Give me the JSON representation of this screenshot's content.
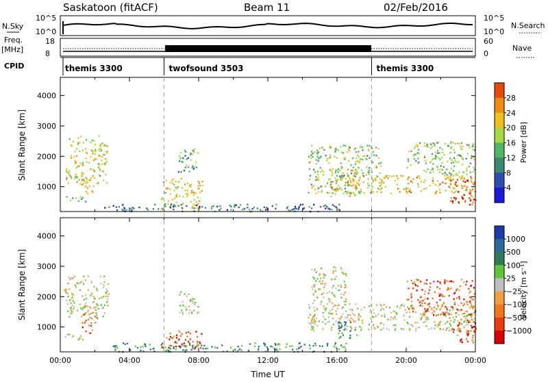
{
  "header": {
    "station": "Saskatoon (fitACF)",
    "beam": "Beam 11",
    "date": "02/Feb/2016"
  },
  "top_panels": {
    "nsky_label": "N.Sky",
    "nsky_ticks": [
      "10^5",
      "10^0"
    ],
    "nsearch_label": "N.Search",
    "nsearch_ticks": [
      "10^5",
      "10^0"
    ],
    "freq_label": "Freq.",
    "freq_unit": "[MHz]",
    "freq_ticks": [
      "18",
      "8"
    ],
    "nave_label": "Nave",
    "nave_ticks": [
      "60",
      "0"
    ],
    "cpid_label": "CPID",
    "modes": [
      {
        "name": "themis 3300",
        "start": 0,
        "end": 6
      },
      {
        "name": "twofsound 3503",
        "start": 6,
        "end": 18
      },
      {
        "name": "themis 3300",
        "start": 18,
        "end": 24
      }
    ]
  },
  "chart_data": [
    {
      "type": "heatmap",
      "panel": "power",
      "ylabel": "Slant Range [km]",
      "xlim": [
        0,
        24
      ],
      "ylim": [
        180,
        4600
      ],
      "yticks": [
        1000,
        2000,
        3000,
        4000
      ],
      "colorbar": {
        "label": "Power [dB]",
        "range": [
          0,
          32
        ],
        "ticks": [
          4,
          8,
          12,
          16,
          20,
          24,
          28
        ]
      },
      "regions": [
        {
          "t0": 0.3,
          "t1": 2.7,
          "r0": 1100,
          "r1": 2700,
          "level": 0.55
        },
        {
          "t0": 1.2,
          "t1": 1.9,
          "r0": 700,
          "r1": 1400,
          "level": 0.6
        },
        {
          "t0": 0.3,
          "t1": 1.5,
          "r0": 500,
          "r1": 700,
          "level": 0.4
        },
        {
          "t0": 5.8,
          "t1": 8.2,
          "r0": 300,
          "r1": 1300,
          "level": 0.6
        },
        {
          "t0": 6.8,
          "t1": 8.0,
          "r0": 1500,
          "r1": 2300,
          "level": 0.35
        },
        {
          "t0": 2.5,
          "t1": 16.5,
          "r0": 200,
          "r1": 450,
          "level": 0.2
        },
        {
          "t0": 14.3,
          "t1": 18.5,
          "r0": 800,
          "r1": 2400,
          "level": 0.45
        },
        {
          "t0": 15.5,
          "t1": 17.5,
          "r0": 700,
          "r1": 1600,
          "level": 0.65
        },
        {
          "t0": 18.0,
          "t1": 24.0,
          "r0": 800,
          "r1": 1400,
          "level": 0.65
        },
        {
          "t0": 20.0,
          "t1": 24.0,
          "r0": 1400,
          "r1": 2500,
          "level": 0.45
        },
        {
          "t0": 22.5,
          "t1": 24.0,
          "r0": 400,
          "r1": 1300,
          "level": 0.85
        }
      ]
    },
    {
      "type": "heatmap",
      "panel": "velocity",
      "xlabel": "Time UT",
      "ylabel": "Slant Range [km]",
      "xlim": [
        0,
        24
      ],
      "ylim": [
        180,
        4600
      ],
      "xticks": [
        "00:00",
        "04:00",
        "08:00",
        "12:00",
        "16:00",
        "20:00",
        "00:00"
      ],
      "yticks": [
        1000,
        2000,
        3000,
        4000
      ],
      "colorbar": {
        "label": "Velocity [m s⁻¹]",
        "ticks": [
          "1000",
          "500",
          "100",
          "25",
          "−25",
          "−100",
          "−500",
          "−1000"
        ]
      },
      "regions": [
        {
          "t0": 0.2,
          "t1": 2.8,
          "r0": 1300,
          "r1": 2700,
          "level": 0.5
        },
        {
          "t0": 0.2,
          "t1": 1.4,
          "r0": 600,
          "r1": 800,
          "level": 0.5
        },
        {
          "t0": 1.2,
          "t1": 2.0,
          "r0": 800,
          "r1": 1500,
          "level": 0.8
        },
        {
          "t0": 5.8,
          "t1": 8.2,
          "r0": 300,
          "r1": 900,
          "level": 0.85
        },
        {
          "t0": 6.8,
          "t1": 8.0,
          "r0": 1400,
          "r1": 2200,
          "level": 0.5
        },
        {
          "t0": 3.0,
          "t1": 16.5,
          "r0": 200,
          "r1": 500,
          "level": 0.25
        },
        {
          "t0": 14.3,
          "t1": 24.0,
          "r0": 900,
          "r1": 1800,
          "level": 0.5
        },
        {
          "t0": 14.5,
          "t1": 16.5,
          "r0": 1800,
          "r1": 3000,
          "level": 0.5
        },
        {
          "t0": 16.0,
          "t1": 17.3,
          "r0": 600,
          "r1": 1200,
          "level": 0.3
        },
        {
          "t0": 20.0,
          "t1": 24.0,
          "r0": 1400,
          "r1": 2600,
          "level": 0.8
        },
        {
          "t0": 22.5,
          "t1": 24.0,
          "r0": 500,
          "r1": 1300,
          "level": 0.85
        }
      ]
    }
  ],
  "colors": {
    "power_scale": [
      "#1a1ad8",
      "#2e4db8",
      "#3c8a6c",
      "#4fb860",
      "#a8d844",
      "#f0c018",
      "#f08c10",
      "#e84a08",
      "#e00000"
    ],
    "velocity_scale": [
      "#1a3ca8",
      "#2a6a9c",
      "#2f7a5a",
      "#5cc838",
      "#bfbfbf",
      "#f0a040",
      "#f07818",
      "#e83c10",
      "#d80000"
    ],
    "mode_line": "#a0a0a0"
  }
}
